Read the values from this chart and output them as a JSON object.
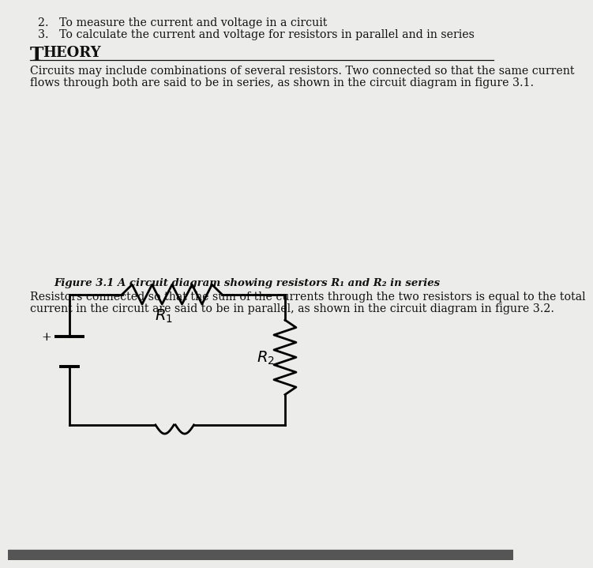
{
  "paper_color": "#ececea",
  "line_color": "#1a1a1a",
  "text_color": "#111111",
  "item1": "2.   To measure the current and voltage in a circuit",
  "item2": "3.   To calculate the current and voltage for resistors in parallel and in series",
  "section_title": "Theory",
  "theory_line1": "Circuits may include combinations of several resistors. Two connected so that the same current",
  "theory_line2": "flows through both are said to be in series, as shown in the circuit diagram in figure 3.1.",
  "figure_caption": "Figure 3.1 A circuit diagram showing resistors R₁ and R₂ in series",
  "parallel_line1": "Resistors connected so that the sum of the currents through the two resistors is equal to the total",
  "parallel_line2": "current in the circuit are said to be in parallel, as shown in the circuit diagram in figure 3.2.",
  "circuit_lw": 2.0,
  "circuit_color": "#000000",
  "bottom_bar_color": "#555555"
}
